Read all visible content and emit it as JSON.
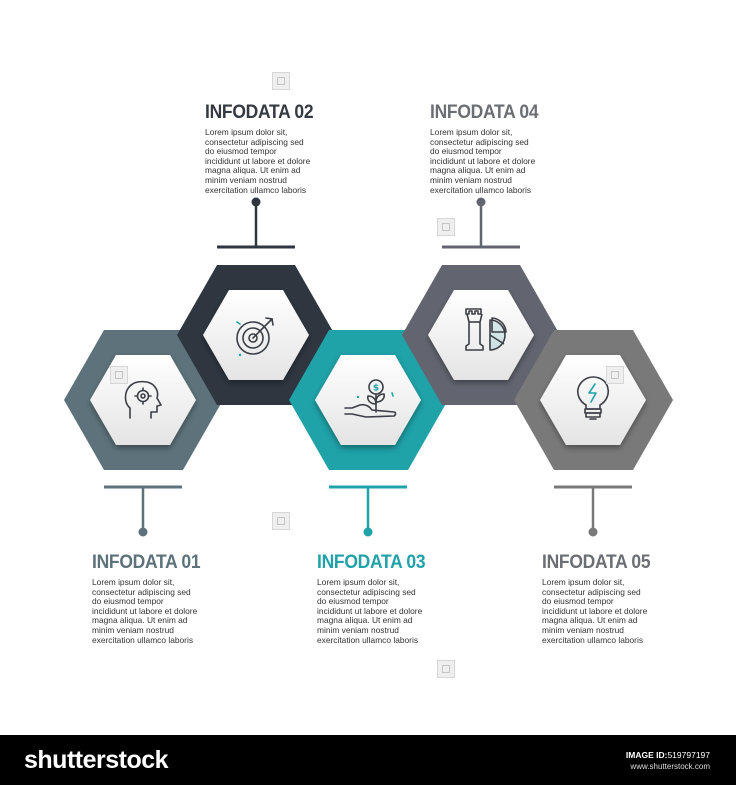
{
  "colors": {
    "slate_teal": "#5d727a",
    "dark_navy": "#2f3640",
    "teal": "#1fa2a8",
    "slate_grey": "#62656f",
    "grey": "#797979",
    "title_dark": "#353a42",
    "title_teal": "#1fa2a8",
    "title_grey": "#6b6f74"
  },
  "items": [
    {
      "id": "01",
      "title": "INFODATA 01",
      "icon": "head-gear-icon",
      "body_lines": [
        "Lorem ipsum dolor sit,",
        "consectetur adipiscing  sed",
        "do eiusmod tempor",
        "incididunt ut labore et dolore",
        "magna aliqua. Ut enim ad",
        "minim veniam nostrud",
        "exercitation ullamco laboris"
      ]
    },
    {
      "id": "02",
      "title": "INFODATA 02",
      "icon": "target-arrow-icon",
      "body_lines": [
        "Lorem ipsum dolor sit,",
        "consectetur adipiscing  sed",
        "do eiusmod tempor",
        "incididunt ut labore et dolore",
        "magna aliqua. Ut enim ad",
        "minim veniam nostrud",
        "exercitation ullamco laboris"
      ]
    },
    {
      "id": "03",
      "title": "INFODATA 03",
      "icon": "hand-coin-plant-icon",
      "body_lines": [
        "Lorem ipsum dolor sit,",
        "consectetur adipiscing  sed",
        "do eiusmod tempor",
        "incididunt ut labore et dolore",
        "magna aliqua. Ut enim ad",
        "minim veniam nostrud",
        "exercitation ullamco laboris"
      ]
    },
    {
      "id": "04",
      "title": "INFODATA 04",
      "icon": "chess-rook-pie-icon",
      "body_lines": [
        "Lorem ipsum dolor sit,",
        "consectetur adipiscing  sed",
        "do eiusmod tempor",
        "incididunt ut labore et dolore",
        "magna aliqua. Ut enim ad",
        "minim veniam nostrud",
        "exercitation ullamco laboris"
      ]
    },
    {
      "id": "05",
      "title": "INFODATA 05",
      "icon": "lightbulb-bolt-icon",
      "body_lines": [
        "Lorem ipsum dolor sit,",
        "consectetur adipiscing  sed",
        "do eiusmod tempor",
        "incididunt ut labore et dolore",
        "magna aliqua. Ut enim ad",
        "minim veniam nostrud",
        "exercitation ullamco laboris"
      ]
    }
  ],
  "footer": {
    "brand": "shutterstock",
    "image_id_label": "IMAGE ID:",
    "image_id": "519797197",
    "site": "www.shutterstock.com"
  }
}
